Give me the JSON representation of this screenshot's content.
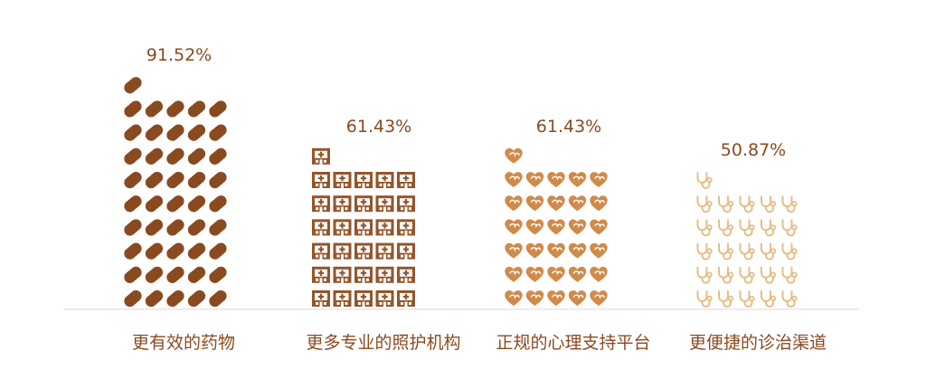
{
  "chart_data": {
    "type": "bar",
    "style": "pictogram",
    "categories": [
      "更有效的药物",
      "更多专业的照护机构",
      "正规的心理支持平台",
      "更便捷的诊治渠道"
    ],
    "values": [
      91.52,
      61.43,
      61.43,
      50.87
    ],
    "value_labels": [
      "91.52%",
      "61.43%",
      "61.43%",
      "50.87%"
    ],
    "icons": [
      "pill-icon",
      "care-facility-icon",
      "heart-icon",
      "stethoscope-icon"
    ],
    "colors": [
      "#8a4a20",
      "#95552a",
      "#d08a4a",
      "#e3bf87"
    ],
    "label_color": "#8a4a20",
    "value_label_color": "#8a4a20",
    "axis_color": "#d9d9d9",
    "icons_per_row": 5
  }
}
